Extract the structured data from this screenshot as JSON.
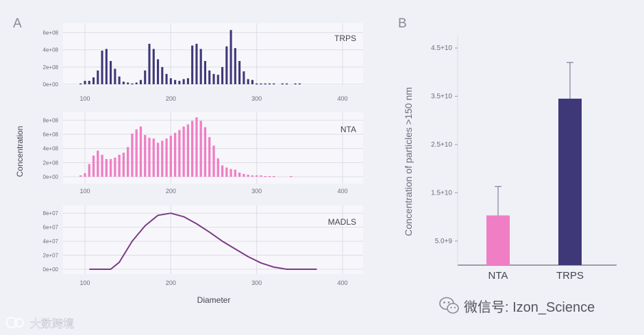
{
  "colors": {
    "background": "#f0f0f7",
    "panel_bg": "#f7f7fb",
    "grid": "#dcdce6",
    "axis_text": "#6e6e7e",
    "trps": "#3f3878",
    "nta": "#f07ec4",
    "madls": "#7c3a86",
    "label": "#44444e",
    "error_bar": "#6a6a8a"
  },
  "panel_a": {
    "letter": "A",
    "ylabel": "Concentration",
    "xlabel": "Diameter"
  },
  "panel_b": {
    "letter": "B"
  },
  "watermark": {
    "wechat_icon": "wechat-icon",
    "text": "微信号: Izon_Science",
    "corner_text": "大数跨境"
  },
  "chart_data": [
    {
      "id": "trps",
      "type": "bar",
      "title": "TRPS",
      "xlim": [
        80,
        420
      ],
      "xticks": [
        100,
        200,
        300,
        400
      ],
      "ylim": [
        0,
        700000000
      ],
      "yticks": [
        0,
        200000000,
        400000000,
        600000000
      ],
      "yticklabels": [
        "0e+00",
        "2e+08",
        "4e+08",
        "6e+08"
      ],
      "x": [
        95,
        100,
        105,
        110,
        115,
        120,
        125,
        130,
        135,
        140,
        145,
        150,
        155,
        160,
        165,
        170,
        175,
        180,
        185,
        190,
        195,
        200,
        205,
        210,
        215,
        220,
        225,
        230,
        235,
        240,
        245,
        250,
        255,
        260,
        265,
        270,
        275,
        280,
        285,
        290,
        295,
        300,
        305,
        310,
        315,
        320,
        330,
        335,
        345,
        350
      ],
      "values": [
        10000000,
        40000000,
        40000000,
        80000000,
        160000000,
        390000000,
        410000000,
        270000000,
        180000000,
        90000000,
        30000000,
        20000000,
        10000000,
        20000000,
        50000000,
        160000000,
        470000000,
        410000000,
        290000000,
        200000000,
        120000000,
        70000000,
        50000000,
        40000000,
        60000000,
        70000000,
        450000000,
        470000000,
        410000000,
        270000000,
        160000000,
        120000000,
        110000000,
        200000000,
        440000000,
        630000000,
        420000000,
        270000000,
        150000000,
        60000000,
        50000000,
        10000000,
        10000000,
        10000000,
        10000000,
        10000000,
        10000000,
        10000000,
        10000000,
        10000000
      ]
    },
    {
      "id": "nta",
      "type": "bar",
      "title": "NTA",
      "xlim": [
        80,
        420
      ],
      "xticks": [
        100,
        200,
        300,
        400
      ],
      "ylim": [
        0,
        900000000
      ],
      "yticks": [
        0,
        200000000,
        400000000,
        600000000,
        800000000
      ],
      "yticklabels": [
        "0e+00",
        "2e+08",
        "4e+08",
        "6e+08",
        "8e+08"
      ],
      "x": [
        95,
        100,
        105,
        110,
        115,
        120,
        125,
        130,
        135,
        140,
        145,
        150,
        155,
        160,
        165,
        170,
        175,
        180,
        185,
        190,
        195,
        200,
        205,
        210,
        215,
        220,
        225,
        230,
        235,
        240,
        245,
        250,
        255,
        260,
        265,
        270,
        275,
        280,
        285,
        290,
        295,
        300,
        305,
        310,
        315,
        320,
        340
      ],
      "values": [
        20000000,
        50000000,
        180000000,
        300000000,
        370000000,
        310000000,
        250000000,
        250000000,
        270000000,
        310000000,
        340000000,
        420000000,
        610000000,
        670000000,
        710000000,
        590000000,
        550000000,
        540000000,
        480000000,
        510000000,
        540000000,
        580000000,
        620000000,
        660000000,
        710000000,
        740000000,
        790000000,
        840000000,
        790000000,
        700000000,
        560000000,
        440000000,
        260000000,
        160000000,
        130000000,
        110000000,
        100000000,
        60000000,
        40000000,
        30000000,
        20000000,
        20000000,
        20000000,
        10000000,
        10000000,
        10000000,
        10000000
      ]
    },
    {
      "id": "madls",
      "type": "line",
      "title": "MADLS",
      "xlim": [
        80,
        420
      ],
      "xticks": [
        100,
        200,
        300,
        400
      ],
      "ylim": [
        0,
        90000000
      ],
      "yticks": [
        0,
        20000000,
        40000000,
        60000000,
        80000000
      ],
      "yticklabels": [
        "0e+00",
        "2e+07",
        "4e+07",
        "6e+07",
        "8e+07"
      ],
      "x": [
        105,
        115,
        130,
        140,
        155,
        170,
        185,
        200,
        215,
        230,
        245,
        260,
        275,
        290,
        305,
        320,
        335,
        350,
        370
      ],
      "values": [
        0,
        0,
        0,
        10000000,
        40000000,
        62000000,
        77000000,
        80000000,
        75000000,
        65000000,
        53000000,
        40000000,
        29000000,
        18000000,
        9000000,
        3000000,
        0,
        0,
        0
      ]
    },
    {
      "id": "concentration-150",
      "type": "bar",
      "categories": [
        "NTA",
        "TRPS"
      ],
      "values": [
        10300000000,
        34500000000
      ],
      "errors": [
        6000000000,
        7500000000
      ],
      "ylabel": "Concentration of particles >150 nm",
      "ylim": [
        0,
        47000000000
      ],
      "yticks": [
        5000000000,
        15000000000,
        25000000000,
        35000000000,
        45000000000
      ],
      "yticklabels": [
        "5.0+9",
        "1.5+10",
        "2.5+10",
        "3.5+10",
        "4.5+10"
      ]
    }
  ]
}
